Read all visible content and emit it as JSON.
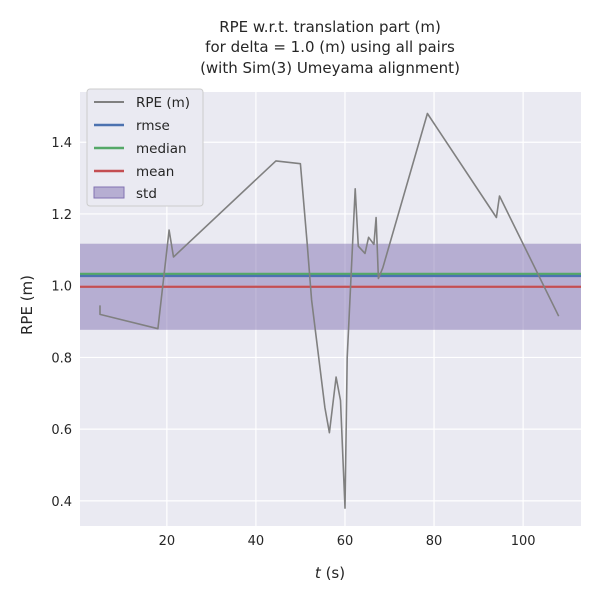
{
  "chart_data": {
    "type": "line",
    "title_lines": [
      "RPE w.r.t. translation part (m)",
      "for delta = 1.0 (m) using all pairs",
      "(with Sim(3) Umeyama alignment)"
    ],
    "xlabel_italic": "t",
    "xlabel_rest": " (s)",
    "ylabel": "RPE (m)",
    "xlim": [
      0.5,
      113
    ],
    "ylim": [
      0.33,
      1.54
    ],
    "xticks": [
      20,
      40,
      60,
      80,
      100
    ],
    "yticks": [
      0.4,
      0.6,
      0.8,
      1.0,
      1.2,
      1.4
    ],
    "ytick_labels": [
      "0.4",
      "0.6",
      "0.8",
      "1.0",
      "1.2",
      "1.4"
    ],
    "grid": true,
    "legend_position": "upper-left",
    "series": [
      {
        "name": "RPE (m)",
        "color": "#808080",
        "x": [
          5,
          5,
          18,
          20.5,
          21.5,
          44.5,
          50,
          51.5,
          52.5,
          55.5,
          56.5,
          58,
          59,
          60,
          60.5,
          62.3,
          63,
          64.5,
          65.3,
          66.5,
          67,
          67.5,
          68.5,
          78.5,
          94,
          94.7,
          108
        ],
        "y": [
          0.945,
          0.92,
          0.88,
          1.155,
          1.08,
          1.348,
          1.34,
          1.12,
          0.96,
          0.66,
          0.59,
          0.745,
          0.68,
          0.38,
          0.8,
          1.27,
          1.11,
          1.09,
          1.135,
          1.115,
          1.19,
          1.02,
          1.05,
          1.48,
          1.19,
          1.25,
          0.915
        ]
      }
    ],
    "rmse": {
      "name": "rmse",
      "value": 1.027,
      "color": "#4c72b0"
    },
    "median": {
      "name": "median",
      "value": 1.033,
      "color": "#55a868"
    },
    "mean": {
      "name": "mean",
      "value": 0.997,
      "color": "#c44e52"
    },
    "std": {
      "name": "std",
      "lower": 0.877,
      "upper": 1.117,
      "color": "#8172b2"
    },
    "plot_background": "#eaeaf2"
  }
}
